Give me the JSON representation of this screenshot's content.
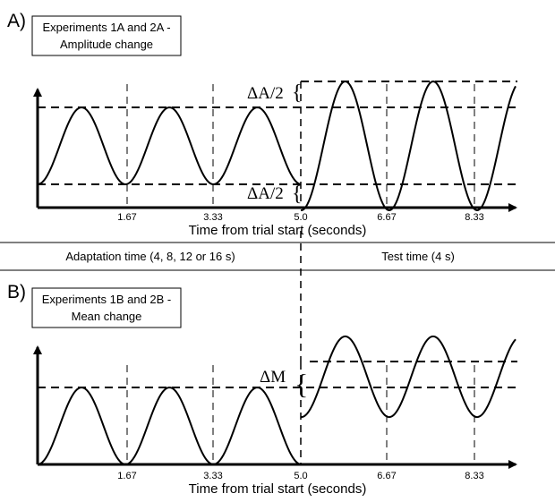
{
  "panel_a": {
    "letter": "A)",
    "box_line1": "Experiments 1A and 2A -",
    "box_line2": "Amplitude change",
    "delta_top": "ΔA/2",
    "delta_bottom": "ΔA/2",
    "ticks": [
      "1.67",
      "3.33",
      "5.0",
      "6.67",
      "8.33"
    ],
    "xlabel": "Time from trial start (seconds)"
  },
  "divider": {
    "left": "Adaptation time (4, 8, 12 or 16 s)",
    "right": "Test time (4 s)"
  },
  "panel_b": {
    "letter": "B)",
    "box_line1": "Experiments 1B and 2B -",
    "box_line2": "Mean change",
    "delta": "ΔM",
    "ticks": [
      "1.67",
      "3.33",
      "5.0",
      "6.67",
      "8.33"
    ],
    "xlabel": "Time from trial start (seconds)"
  },
  "chart_data": [
    {
      "type": "line",
      "xlabel": "Time from trial start (seconds)",
      "x_ticks": [
        1.67,
        3.33,
        5.0,
        6.67,
        8.33
      ],
      "period_s": 1.67,
      "change_time_s": 5.0,
      "adaptation": {
        "mean": 0,
        "amplitude": 1
      },
      "test": {
        "mean": 0,
        "amplitude": 2
      },
      "annotations": [
        "ΔA/2",
        "ΔA/2"
      ]
    },
    {
      "type": "line",
      "xlabel": "Time from trial start (seconds)",
      "x_ticks": [
        1.67,
        3.33,
        5.0,
        6.67,
        8.33
      ],
      "period_s": 1.67,
      "change_time_s": 5.0,
      "adaptation": {
        "mean": 0,
        "amplitude": 1
      },
      "test": {
        "mean": 1,
        "amplitude": 1
      },
      "annotations": [
        "ΔM"
      ]
    }
  ]
}
